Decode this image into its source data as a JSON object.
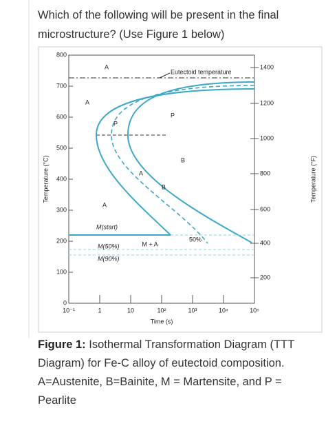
{
  "question": {
    "text": "Which of the following will be present in the final microstructure? (Use Figure 1 below)"
  },
  "figure": {
    "y_label_left": "Temperature (°C)",
    "y_label_right": "Temperature (°F)",
    "x_label": "Time (s)",
    "y_ticks_left": [
      "800",
      "700",
      "600",
      "500",
      "400",
      "300",
      "200",
      "100",
      "0"
    ],
    "y_ticks_right": [
      "1400",
      "1200",
      "1000",
      "800",
      "600",
      "400",
      "200"
    ],
    "x_ticks": [
      "10⁻¹",
      "1",
      "10",
      "10²",
      "10³",
      "10⁴",
      "10⁵"
    ],
    "annotations": [
      "A",
      "Eutectoid temperature",
      "A",
      "P",
      "P",
      "B",
      "A",
      "B",
      "A",
      "M(start)",
      "M + A",
      "50%",
      "M(50%)",
      "M(90%)"
    ]
  },
  "caption": {
    "label": "Figure 1:",
    "text": "Isothermal Transformation Diagram (TTT Diagram) for Fe-C alloy of eutectoid composition. A=Austenite, B=Bainite, M = Martensite, and P = Pearlite"
  }
}
